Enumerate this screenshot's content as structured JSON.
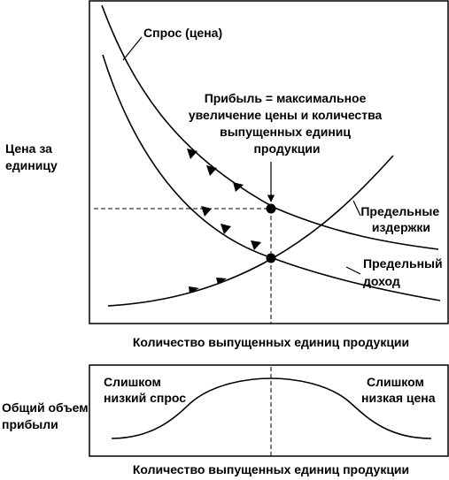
{
  "top_chart": {
    "y_axis_label_lines": [
      "Цена за",
      "единицу"
    ],
    "x_axis_label": "Количество выпущенных единиц продукции",
    "demand_label": "Спрос (цена)",
    "profit_note_lines": [
      "Прибыль = максимальное",
      "увеличение цены и количества",
      "выпущенных единиц",
      "продукции"
    ],
    "marginal_cost_label_lines": [
      "Предельные",
      "издержки"
    ],
    "marginal_revenue_label_lines": [
      "Предельный",
      "доход"
    ]
  },
  "bottom_chart": {
    "y_axis_label_lines": [
      "Общий объем",
      "прибыли"
    ],
    "x_axis_label": "Количество выпущенных единиц продукции",
    "left_note_lines": [
      "Слишком",
      "низкий спрос"
    ],
    "right_note_lines": [
      "Слишком",
      "низкая цена"
    ]
  }
}
